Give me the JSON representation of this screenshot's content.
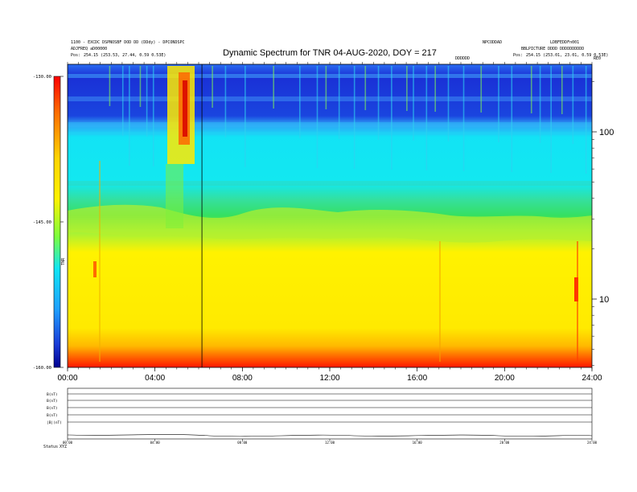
{
  "header": {
    "left_line1": "1100 - EXCDC DSPNOSBF DOD DD (DDdy) - DPCONDSPC",
    "left_line2": "ADJFREQ aD00000",
    "left_line3_label": "Pos:",
    "left_line3_value": "254.15 (253.53, 27.44, 0.59 0.53E)",
    "right_top1": "NPCODDAD",
    "right_top2": "LDBFEDDFn001",
    "right_line2": "BBLPICTURE DDDD DDDDDDDDDD",
    "right_line3_label": "Pos:",
    "right_line3_value": "254.15 (253.01, 23.01, 0.59 0.53E)",
    "mid_tag": "DDDDDD",
    "corner_tag": "RE0"
  },
  "chart_data": {
    "type": "heatmap",
    "title": "Dynamic Spectrum for TNR 04-AUG-2020, DOY = 217",
    "colorbar": {
      "ticks": [
        {
          "value": -130,
          "label": "-130.00"
        },
        {
          "value": -145,
          "label": "-145.00"
        },
        {
          "value": -160,
          "label": "-160.00"
        }
      ],
      "range": [
        -160,
        -130
      ],
      "side_label": "TNR"
    },
    "x_axis": {
      "range_hours": [
        0,
        24
      ],
      "ticks": [
        {
          "value": 0,
          "label": "00:00"
        },
        {
          "value": 4,
          "label": "04:00"
        },
        {
          "value": 8,
          "label": "08:00"
        },
        {
          "value": 12,
          "label": "12:00"
        },
        {
          "value": 16,
          "label": "16:00"
        },
        {
          "value": 20,
          "label": "20:00"
        },
        {
          "value": 24,
          "label": "24:00"
        }
      ]
    },
    "y_axis": {
      "scale": "log",
      "ticks": [
        {
          "value": 100,
          "label": "100"
        },
        {
          "value": 10,
          "label": "10"
        }
      ]
    },
    "marker_line_hour": 6.15,
    "bands": [
      {
        "name": "deep-blue",
        "color": "#1f37d8"
      },
      {
        "name": "cyan",
        "color": "#10e6f4"
      },
      {
        "name": "green",
        "color": "#35e070"
      },
      {
        "name": "yellow",
        "color": "#fff200"
      },
      {
        "name": "red",
        "color": "#ff2a00"
      }
    ],
    "burst_events_hours": [
      4.5,
      5.3,
      1.5,
      16.9,
      23.6
    ],
    "subpanels": [
      {
        "label": "B(nT)"
      },
      {
        "label": "B(nT)"
      },
      {
        "label": "B(nT)"
      },
      {
        "label": "B(nT)"
      },
      {
        "label": "|B|(nT)"
      }
    ],
    "footer_label": "Status",
    "footer_value": "XYZ"
  }
}
